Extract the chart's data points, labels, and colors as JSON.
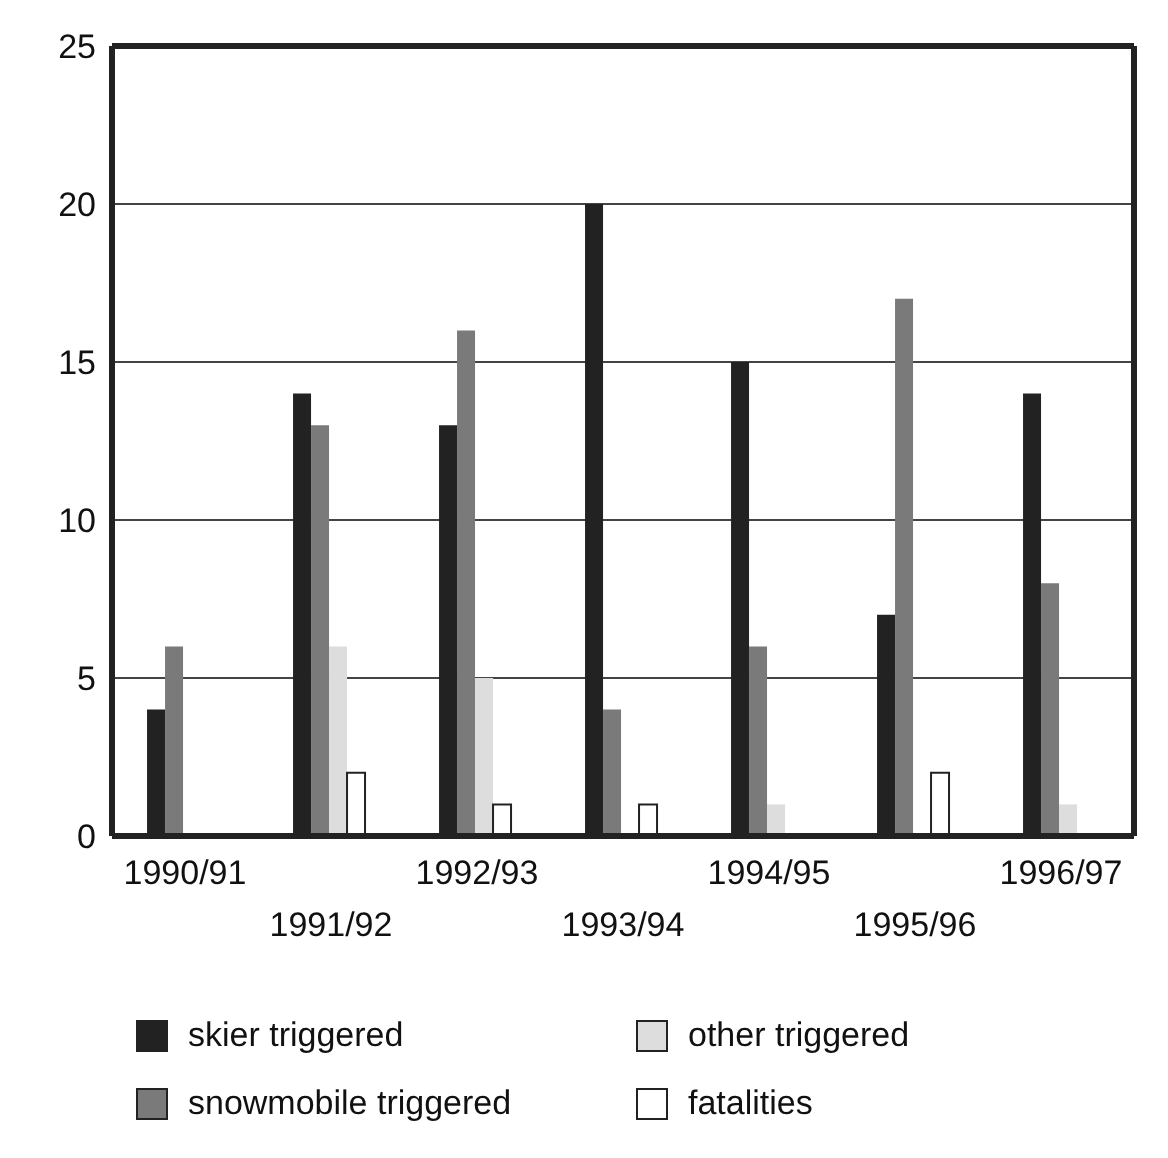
{
  "chart_data": {
    "type": "bar",
    "categories": [
      "1990/91",
      "1991/92",
      "1992/93",
      "1993/94",
      "1994/95",
      "1995/96",
      "1996/97"
    ],
    "series": [
      {
        "name": "skier triggered",
        "color": "#222222",
        "values": [
          4,
          14,
          13,
          20,
          15,
          7,
          14
        ]
      },
      {
        "name": "snowmobile triggered",
        "color": "#7a7a7a",
        "values": [
          6,
          13,
          16,
          4,
          6,
          17,
          8
        ]
      },
      {
        "name": "other triggered",
        "color": "#dddddd",
        "values": [
          0,
          6,
          5,
          0,
          1,
          0,
          1
        ]
      },
      {
        "name": "fatalities",
        "color": "#ffffff",
        "values": [
          0,
          2,
          1,
          1,
          0,
          2,
          0
        ]
      }
    ],
    "ylim": [
      0,
      25
    ],
    "yticks": [
      0,
      5,
      10,
      15,
      20,
      25
    ],
    "grid": "y",
    "legend": "bottom"
  }
}
